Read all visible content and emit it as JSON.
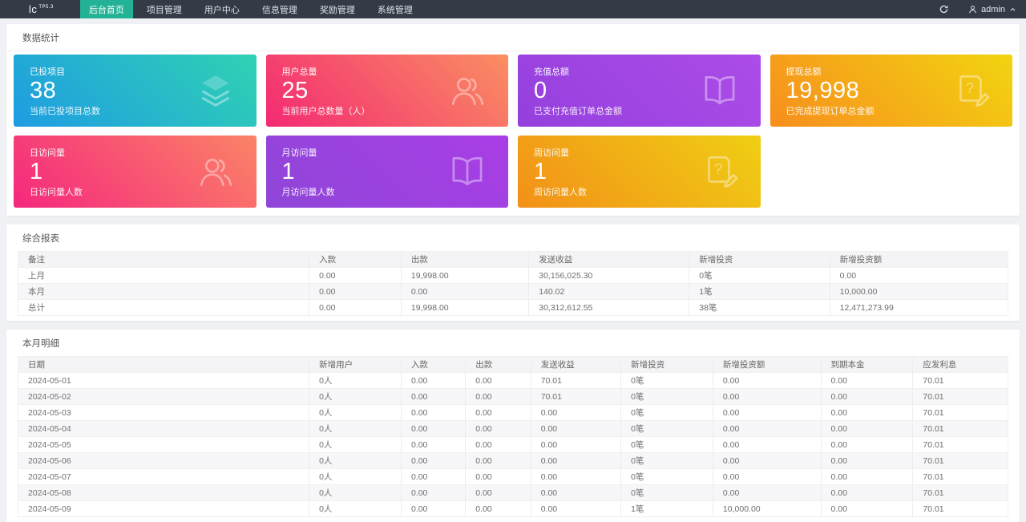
{
  "nav": {
    "logo_text": "lc",
    "logo_sup": "TP5.3",
    "items": [
      {
        "label": "后台首页",
        "active": true
      },
      {
        "label": "项目管理",
        "active": false
      },
      {
        "label": "用户中心",
        "active": false
      },
      {
        "label": "信息管理",
        "active": false
      },
      {
        "label": "奖励管理",
        "active": false
      },
      {
        "label": "系统管理",
        "active": false
      }
    ],
    "refresh_icon": "refresh-icon",
    "user": {
      "icon": "user-icon",
      "name": "admin",
      "caret_icon": "chevron-up-icon"
    }
  },
  "colors": {
    "accent_green": "#23b295",
    "navbar_bg": "#343b46",
    "page_bg": "#f0f1f4"
  },
  "stats": {
    "section_title": "数据统计",
    "cards": [
      {
        "title": "已投项目",
        "value": "38",
        "desc": "当前已投项目总数",
        "icon": "layers-icon",
        "from": "#1e9ce2",
        "to": "#30d2b3"
      },
      {
        "title": "用户总量",
        "value": "25",
        "desc": "当前用户总数量（人）",
        "icon": "users-icon",
        "from": "#f32973",
        "to": "#fa8f62"
      },
      {
        "title": "充值总额",
        "value": "0",
        "desc": "已支付充值订单总金额",
        "icon": "book-icon",
        "from": "#9440dd",
        "to": "#ad4ce8"
      },
      {
        "title": "提现总额",
        "value": "19,998",
        "desc": "已完成提现订单总金额",
        "icon": "file-edit-icon",
        "from": "#f78e1e",
        "to": "#f2d410"
      },
      {
        "title": "日访问量",
        "value": "1",
        "desc": "日访问量人数",
        "icon": "users-icon",
        "from": "#f5277e",
        "to": "#fb8366"
      },
      {
        "title": "月访问量",
        "value": "1",
        "desc": "月访问量人数",
        "icon": "book-icon",
        "from": "#8f46d8",
        "to": "#a93ee6"
      },
      {
        "title": "周访问量",
        "value": "1",
        "desc": "周访问量人数",
        "icon": "file-edit-icon",
        "from": "#f29018",
        "to": "#f0cf14"
      }
    ]
  },
  "report": {
    "section_title": "综合报表",
    "columns": [
      "备注",
      "入款",
      "出款",
      "发送收益",
      "新增投资",
      "新增投资额"
    ],
    "rows": [
      [
        "上月",
        "0.00",
        "19,998.00",
        "30,156,025.30",
        "0笔",
        "0.00"
      ],
      [
        "本月",
        "0.00",
        "0.00",
        "140.02",
        "1笔",
        "10,000.00"
      ],
      [
        "总计",
        "0.00",
        "19,998.00",
        "30,312,612.55",
        "38笔",
        "12,471,273.99"
      ]
    ]
  },
  "detail": {
    "section_title": "本月明细",
    "columns": [
      "日期",
      "新增用户",
      "入款",
      "出款",
      "发送收益",
      "新增投资",
      "新增投资额",
      "到期本金",
      "应发利息"
    ],
    "rows": [
      [
        "2024-05-01",
        "0人",
        "0.00",
        "0.00",
        "70.01",
        "0笔",
        "0.00",
        "0.00",
        "70.01"
      ],
      [
        "2024-05-02",
        "0人",
        "0.00",
        "0.00",
        "70.01",
        "0笔",
        "0.00",
        "0.00",
        "70.01"
      ],
      [
        "2024-05-03",
        "0人",
        "0.00",
        "0.00",
        "0.00",
        "0笔",
        "0.00",
        "0.00",
        "70.01"
      ],
      [
        "2024-05-04",
        "0人",
        "0.00",
        "0.00",
        "0.00",
        "0笔",
        "0.00",
        "0.00",
        "70.01"
      ],
      [
        "2024-05-05",
        "0人",
        "0.00",
        "0.00",
        "0.00",
        "0笔",
        "0.00",
        "0.00",
        "70.01"
      ],
      [
        "2024-05-06",
        "0人",
        "0.00",
        "0.00",
        "0.00",
        "0笔",
        "0.00",
        "0.00",
        "70.01"
      ],
      [
        "2024-05-07",
        "0人",
        "0.00",
        "0.00",
        "0.00",
        "0笔",
        "0.00",
        "0.00",
        "70.01"
      ],
      [
        "2024-05-08",
        "0人",
        "0.00",
        "0.00",
        "0.00",
        "0笔",
        "0.00",
        "0.00",
        "70.01"
      ],
      [
        "2024-05-09",
        "0人",
        "0.00",
        "0.00",
        "0.00",
        "1笔",
        "10,000.00",
        "0.00",
        "70.01"
      ]
    ]
  }
}
